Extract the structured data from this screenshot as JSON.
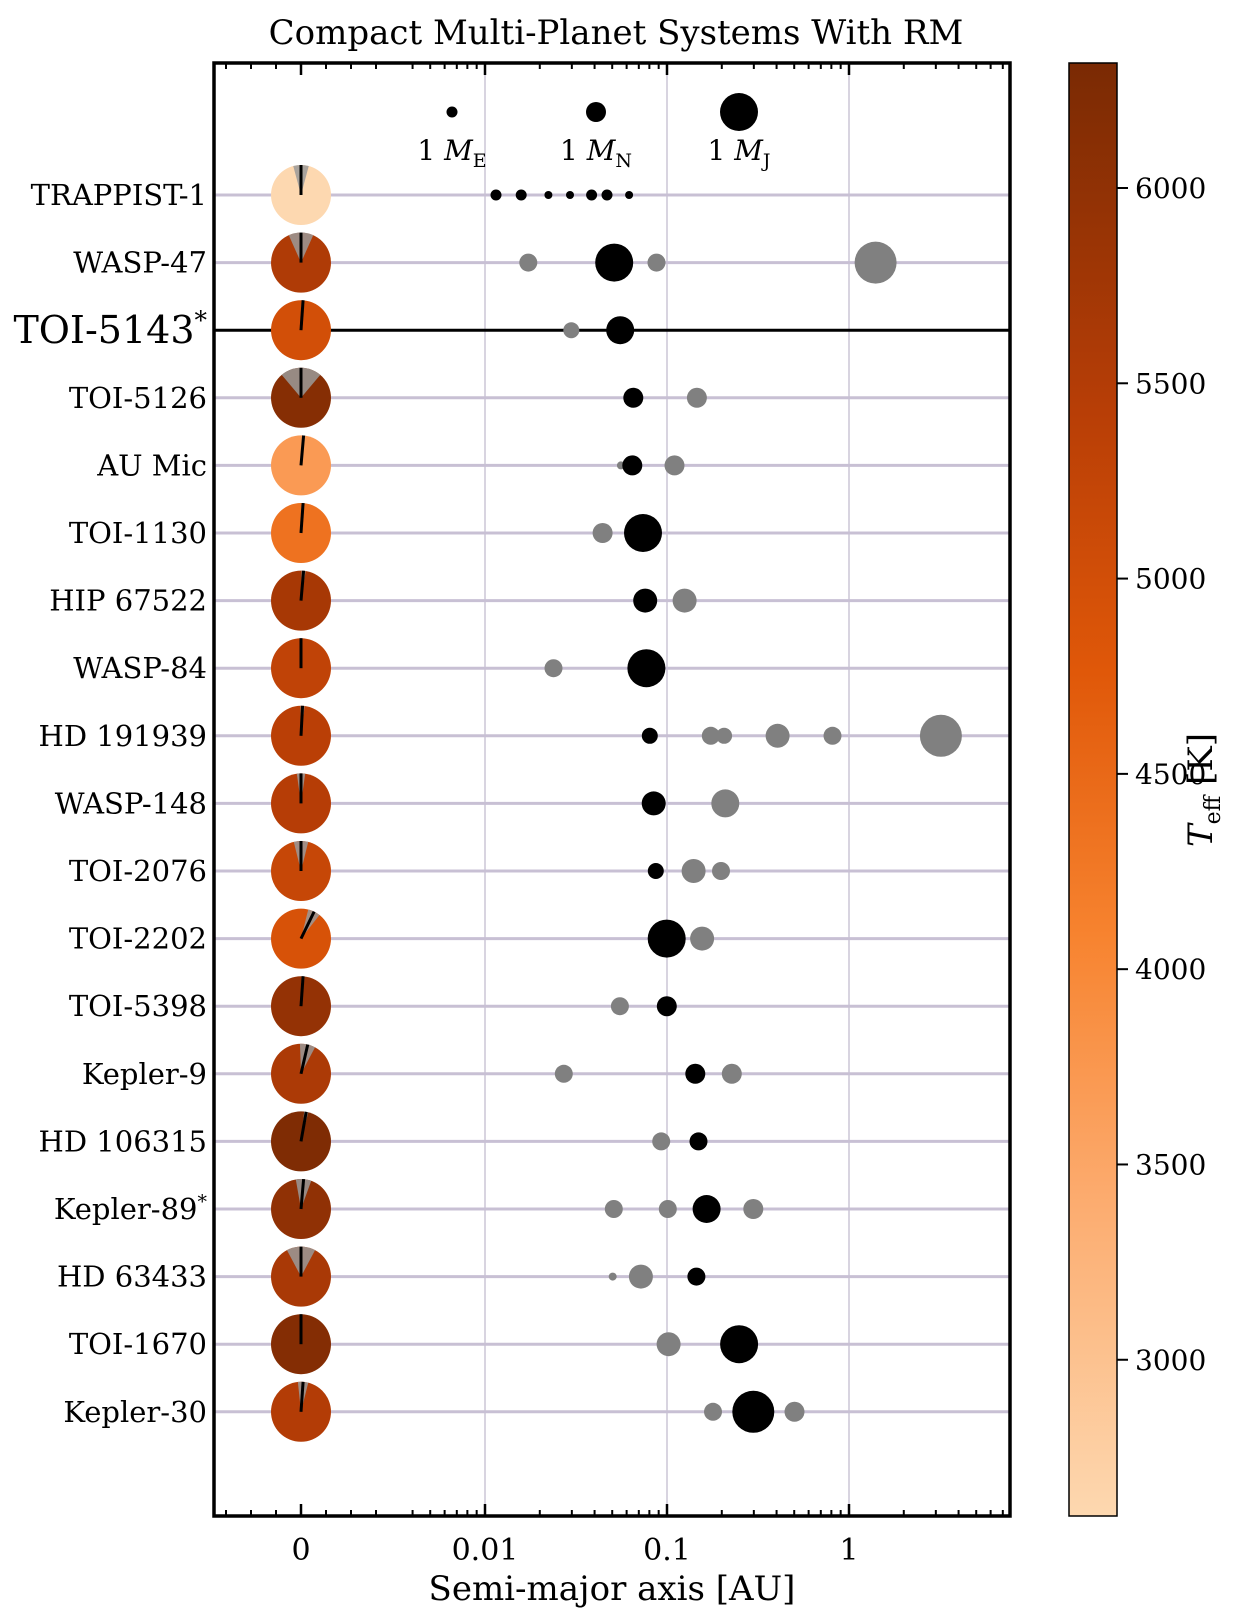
{
  "chart_data": {
    "type": "scatter",
    "title": "Compact Multi-Planet Systems With RM",
    "xlabel": "Semi-major axis [AU]",
    "x_scale": "log",
    "x_ticks": [
      {
        "value": 0,
        "label": "0"
      },
      {
        "value": 0.01,
        "label": "0.01"
      },
      {
        "value": 0.1,
        "label": "0.1"
      },
      {
        "value": 1,
        "label": "1"
      }
    ],
    "legend": {
      "placement": "top-center",
      "items": [
        {
          "label_main": "1 M",
          "label_sub": "E",
          "mass_type": "earth"
        },
        {
          "label_main": "1 M",
          "label_sub": "N",
          "mass_type": "neptune"
        },
        {
          "label_main": "1 M",
          "label_sub": "J",
          "mass_type": "jupiter"
        }
      ]
    },
    "colorbar": {
      "label_main": "T",
      "label_sub": "eff",
      "label_unit": " [K]",
      "min": 2600,
      "max": 6320,
      "ticks": [
        3000,
        3500,
        4000,
        4500,
        5000,
        5500,
        6000
      ]
    },
    "colors": {
      "measured_planet": "#000000",
      "other_planet": "#808080",
      "row_line": "#c8c0d4",
      "grid_line": "#d8d4e0"
    },
    "systems": [
      {
        "name": "TRAPPIST-1",
        "teff": 2560,
        "obliquity": 0,
        "obliquity_err": 15,
        "planets": [
          {
            "a": 0.0115,
            "size": "s",
            "measured": true
          },
          {
            "a": 0.0158,
            "size": "s",
            "measured": true
          },
          {
            "a": 0.0223,
            "size": "xs",
            "measured": true
          },
          {
            "a": 0.0293,
            "size": "xs",
            "measured": true
          },
          {
            "a": 0.0385,
            "size": "s",
            "measured": true
          },
          {
            "a": 0.0468,
            "size": "s",
            "measured": true
          },
          {
            "a": 0.0619,
            "size": "xs",
            "measured": true
          }
        ]
      },
      {
        "name": "WASP-47",
        "teff": 5550,
        "obliquity": 0,
        "obliquity_err": 24,
        "planets": [
          {
            "a": 0.0173,
            "size": "m",
            "measured": false
          },
          {
            "a": 0.0513,
            "size": "xl",
            "measured": true
          },
          {
            "a": 0.0876,
            "size": "m",
            "measured": false
          },
          {
            "a": 1.4,
            "size": "xxl",
            "measured": false
          }
        ]
      },
      {
        "name": "TOI-5143",
        "star_mark": "*",
        "highlight": true,
        "teff": 5000,
        "obliquity": 4,
        "obliquity_err": 3,
        "planets": [
          {
            "a": 0.0298,
            "size": "sm",
            "measured": false
          },
          {
            "a": 0.0553,
            "size": "l",
            "measured": true
          }
        ]
      },
      {
        "name": "TOI-5126",
        "teff": 6150,
        "obliquity": 0,
        "obliquity_err": 40,
        "planets": [
          {
            "a": 0.0653,
            "size": "ml",
            "measured": true
          },
          {
            "a": 0.146,
            "size": "ml",
            "measured": false
          }
        ]
      },
      {
        "name": "AU Mic",
        "teff": 3700,
        "obliquity": 5,
        "obliquity_err": 3,
        "planets": [
          {
            "a": 0.0558,
            "size": "xs",
            "measured": false
          },
          {
            "a": 0.0645,
            "size": "ml",
            "measured": true
          },
          {
            "a": 0.11,
            "size": "ml",
            "measured": false
          }
        ]
      },
      {
        "name": "TOI-1130",
        "teff": 4350,
        "obliquity": 4,
        "obliquity_err": 3,
        "planets": [
          {
            "a": 0.0443,
            "size": "ml",
            "measured": false
          },
          {
            "a": 0.0738,
            "size": "xl",
            "measured": true
          }
        ]
      },
      {
        "name": "HIP 67522",
        "teff": 5675,
        "obliquity": 5,
        "obliquity_err": 4,
        "planets": [
          {
            "a": 0.0759,
            "size": "lm",
            "measured": true
          },
          {
            "a": 0.125,
            "size": "lm",
            "measured": false
          }
        ]
      },
      {
        "name": "WASP-84",
        "teff": 5300,
        "obliquity": 0,
        "obliquity_err": 2,
        "planets": [
          {
            "a": 0.0238,
            "size": "m",
            "measured": false
          },
          {
            "a": 0.0771,
            "size": "xl",
            "measured": true
          }
        ]
      },
      {
        "name": "HD 191939",
        "teff": 5400,
        "obliquity": 3,
        "obliquity_err": 4,
        "planets": [
          {
            "a": 0.0804,
            "size": "sm",
            "measured": true
          },
          {
            "a": 0.174,
            "size": "m",
            "measured": false
          },
          {
            "a": 0.206,
            "size": "sm",
            "measured": false
          },
          {
            "a": 0.405,
            "size": "lm",
            "measured": false
          },
          {
            "a": 0.812,
            "size": "m",
            "measured": false
          },
          {
            "a": 3.2,
            "size": "xxl",
            "measured": false
          }
        ]
      },
      {
        "name": "WASP-148",
        "teff": 5460,
        "obliquity": 0,
        "obliquity_err": 8,
        "planets": [
          {
            "a": 0.0845,
            "size": "lm",
            "measured": true
          },
          {
            "a": 0.209,
            "size": "l",
            "measured": false
          }
        ]
      },
      {
        "name": "TOI-2076",
        "teff": 5200,
        "obliquity": 0,
        "obliquity_err": 14,
        "planets": [
          {
            "a": 0.0868,
            "size": "sm",
            "measured": true
          },
          {
            "a": 0.14,
            "size": "lm",
            "measured": false
          },
          {
            "a": 0.198,
            "size": "m",
            "measured": false
          }
        ]
      },
      {
        "name": "TOI-2202",
        "teff": 4900,
        "obliquity": 26,
        "obliquity_err": 12,
        "planets": [
          {
            "a": 0.0996,
            "size": "xl",
            "measured": true
          },
          {
            "a": 0.156,
            "size": "lm",
            "measured": false
          }
        ]
      },
      {
        "name": "TOI-5398",
        "teff": 5950,
        "obliquity": 4,
        "obliquity_err": 3,
        "planets": [
          {
            "a": 0.0551,
            "size": "m",
            "measured": false
          },
          {
            "a": 0.0998,
            "size": "ml",
            "measured": true
          }
        ]
      },
      {
        "name": "Kepler-9",
        "teff": 5600,
        "obliquity": 13,
        "obliquity_err": 15,
        "planets": [
          {
            "a": 0.0271,
            "size": "m",
            "measured": false
          },
          {
            "a": 0.143,
            "size": "ml",
            "measured": true
          },
          {
            "a": 0.227,
            "size": "ml",
            "measured": false
          }
        ]
      },
      {
        "name": "HD 106315",
        "teff": 6250,
        "obliquity": 10,
        "obliquity_err": 4,
        "planets": [
          {
            "a": 0.0929,
            "size": "m",
            "measured": false
          },
          {
            "a": 0.149,
            "size": "m",
            "measured": true
          }
        ]
      },
      {
        "name": "Kepler-89",
        "star_mark": "*",
        "teff": 6000,
        "obliquity": 5,
        "obliquity_err": 15,
        "planets": [
          {
            "a": 0.051,
            "size": "m",
            "measured": false
          },
          {
            "a": 0.101,
            "size": "m",
            "measured": false
          },
          {
            "a": 0.165,
            "size": "l",
            "measured": true
          },
          {
            "a": 0.298,
            "size": "ml",
            "measured": false
          }
        ]
      },
      {
        "name": "HD 63433",
        "teff": 5640,
        "obliquity": 0,
        "obliquity_err": 28,
        "planets": [
          {
            "a": 0.0503,
            "size": "xs",
            "measured": false
          },
          {
            "a": 0.0719,
            "size": "lm",
            "measured": false
          },
          {
            "a": 0.145,
            "size": "m",
            "measured": true
          }
        ]
      },
      {
        "name": "TOI-1670",
        "teff": 6170,
        "obliquity": 0,
        "obliquity_err": 3,
        "planets": [
          {
            "a": 0.102,
            "size": "lm",
            "measured": false
          },
          {
            "a": 0.249,
            "size": "xl",
            "measured": true
          }
        ]
      },
      {
        "name": "Kepler-30",
        "teff": 5500,
        "obliquity": 4,
        "obliquity_err": 10,
        "planets": [
          {
            "a": 0.179,
            "size": "m",
            "measured": false
          },
          {
            "a": 0.298,
            "size": "xxl",
            "measured": true
          },
          {
            "a": 0.502,
            "size": "ml",
            "measured": false
          }
        ]
      }
    ]
  }
}
